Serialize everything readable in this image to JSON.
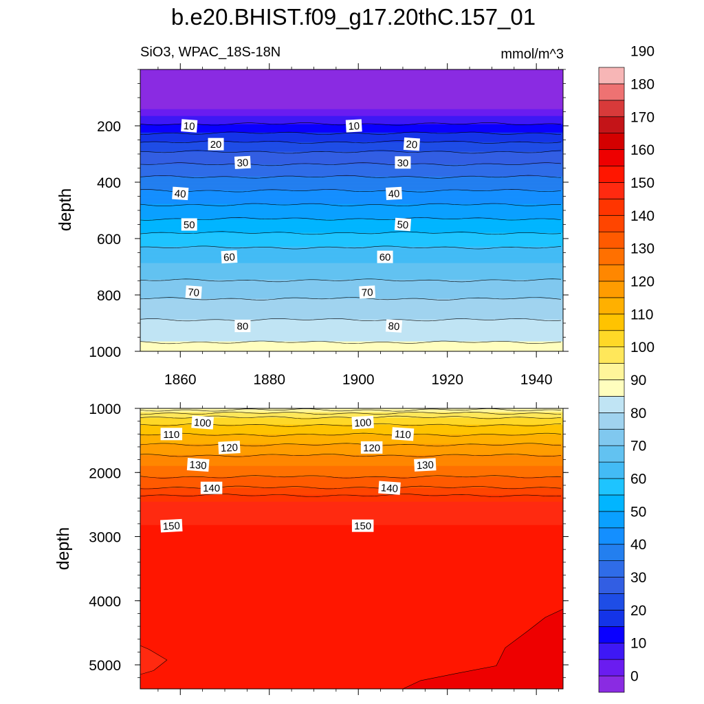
{
  "chart_data": [
    {
      "type": "contour",
      "panel": "upper",
      "title": "b.e20.BHIST.f09_g17.20thC.157_01",
      "left_subtitle": "SiO3, WPAC_18S-18N",
      "right_subtitle": "mmol/m^3",
      "xlabel": "",
      "ylabel": "depth",
      "xlim": [
        1851,
        1946
      ],
      "ylim": [
        1000,
        0
      ],
      "x_ticks": [
        "1860",
        "1880",
        "1900",
        "1920",
        "1940"
      ],
      "y_ticks": [
        "200",
        "400",
        "600",
        "800",
        "1000"
      ],
      "contour_interval": 5,
      "depth_profile": [
        {
          "depth": 0,
          "value": -1
        },
        {
          "depth": 140,
          "value": 0
        },
        {
          "depth": 165,
          "value": 5
        },
        {
          "depth": 180,
          "value": 8
        },
        {
          "depth": 220,
          "value": 14
        },
        {
          "depth": 245,
          "value": 18
        },
        {
          "depth": 270,
          "value": 22
        },
        {
          "depth": 300,
          "value": 26
        },
        {
          "depth": 345,
          "value": 31
        },
        {
          "depth": 390,
          "value": 36
        },
        {
          "depth": 440,
          "value": 41
        },
        {
          "depth": 500,
          "value": 47
        },
        {
          "depth": 560,
          "value": 53
        },
        {
          "depth": 620,
          "value": 59
        },
        {
          "depth": 690,
          "value": 65
        },
        {
          "depth": 760,
          "value": 71
        },
        {
          "depth": 840,
          "value": 77
        },
        {
          "depth": 920,
          "value": 82
        },
        {
          "depth": 1000,
          "value": 87
        }
      ],
      "contour_labels": [
        {
          "value": "10",
          "x": 1862,
          "depth": 200
        },
        {
          "value": "10",
          "x": 1899,
          "depth": 200
        },
        {
          "value": "20",
          "x": 1868,
          "depth": 265
        },
        {
          "value": "20",
          "x": 1912,
          "depth": 265
        },
        {
          "value": "30",
          "x": 1874,
          "depth": 330
        },
        {
          "value": "30",
          "x": 1910,
          "depth": 330
        },
        {
          "value": "40",
          "x": 1860,
          "depth": 440
        },
        {
          "value": "40",
          "x": 1908,
          "depth": 440
        },
        {
          "value": "50",
          "x": 1862,
          "depth": 550
        },
        {
          "value": "50",
          "x": 1910,
          "depth": 550
        },
        {
          "value": "60",
          "x": 1871,
          "depth": 665
        },
        {
          "value": "60",
          "x": 1906,
          "depth": 665
        },
        {
          "value": "70",
          "x": 1863,
          "depth": 790
        },
        {
          "value": "70",
          "x": 1902,
          "depth": 790
        },
        {
          "value": "80",
          "x": 1874,
          "depth": 910
        },
        {
          "value": "80",
          "x": 1908,
          "depth": 910
        }
      ]
    },
    {
      "type": "contour",
      "panel": "lower",
      "xlabel": "",
      "ylabel": "depth",
      "xlim": [
        1851,
        1946
      ],
      "ylim": [
        5375,
        1000
      ],
      "y_ticks": [
        "1000",
        "2000",
        "3000",
        "4000",
        "5000"
      ],
      "contour_interval": 5,
      "depth_profile": [
        {
          "depth": 1000,
          "value": 88
        },
        {
          "depth": 1050,
          "value": 92
        },
        {
          "depth": 1100,
          "value": 98
        },
        {
          "depth": 1200,
          "value": 103
        },
        {
          "depth": 1350,
          "value": 108
        },
        {
          "depth": 1500,
          "value": 113
        },
        {
          "depth": 1700,
          "value": 119
        },
        {
          "depth": 1900,
          "value": 125
        },
        {
          "depth": 2100,
          "value": 131
        },
        {
          "depth": 2300,
          "value": 137
        },
        {
          "depth": 2450,
          "value": 145
        },
        {
          "depth": 2820,
          "value": 150
        }
      ],
      "deep_regions": [
        {
          "value_range": "155-160",
          "location": "bottom-right",
          "top_depth_at_right_edge": 4130
        },
        {
          "value_range": "145-150",
          "location": "bottom-left",
          "depth_range": [
            4700,
            5150
          ]
        }
      ],
      "contour_labels": [
        {
          "value": "100",
          "x": 1865,
          "depth": 1220
        },
        {
          "value": "100",
          "x": 1901,
          "depth": 1220
        },
        {
          "value": "110",
          "x": 1858,
          "depth": 1400
        },
        {
          "value": "110",
          "x": 1910,
          "depth": 1400
        },
        {
          "value": "120",
          "x": 1871,
          "depth": 1610
        },
        {
          "value": "120",
          "x": 1903,
          "depth": 1610
        },
        {
          "value": "130",
          "x": 1864,
          "depth": 1880
        },
        {
          "value": "130",
          "x": 1915,
          "depth": 1880
        },
        {
          "value": "140",
          "x": 1867,
          "depth": 2240
        },
        {
          "value": "140",
          "x": 1907,
          "depth": 2240
        },
        {
          "value": "150",
          "x": 1858,
          "depth": 2830
        },
        {
          "value": "150",
          "x": 1901,
          "depth": 2830
        }
      ]
    }
  ],
  "colorbar": {
    "labels": [
      "0",
      "10",
      "20",
      "30",
      "40",
      "50",
      "60",
      "70",
      "80",
      "90",
      "100",
      "110",
      "120",
      "130",
      "140",
      "150",
      "160",
      "170",
      "180",
      "190"
    ],
    "colors": [
      "#8a2be2",
      "#6a1cf0",
      "#3e18f5",
      "#0a00ff",
      "#1434e8",
      "#1e4de6",
      "#325ee3",
      "#2f6ce8",
      "#237fef",
      "#148fff",
      "#0aa0ff",
      "#01b5ff",
      "#1ec4ff",
      "#43bbf5",
      "#62c2f1",
      "#80c8ef",
      "#a0d3ef",
      "#c0e4f4",
      "#fffebe",
      "#fff59a",
      "#ffe75a",
      "#ffd827",
      "#ffc300",
      "#ffb000",
      "#ff9c00",
      "#ff8700",
      "#ff7000",
      "#ff5a00",
      "#ff4500",
      "#ff3500",
      "#ff2a10",
      "#ff1600",
      "#ee0000",
      "#d40000",
      "#c41418",
      "#d83a3a",
      "#ee7272",
      "#f7b6b6"
    ]
  }
}
